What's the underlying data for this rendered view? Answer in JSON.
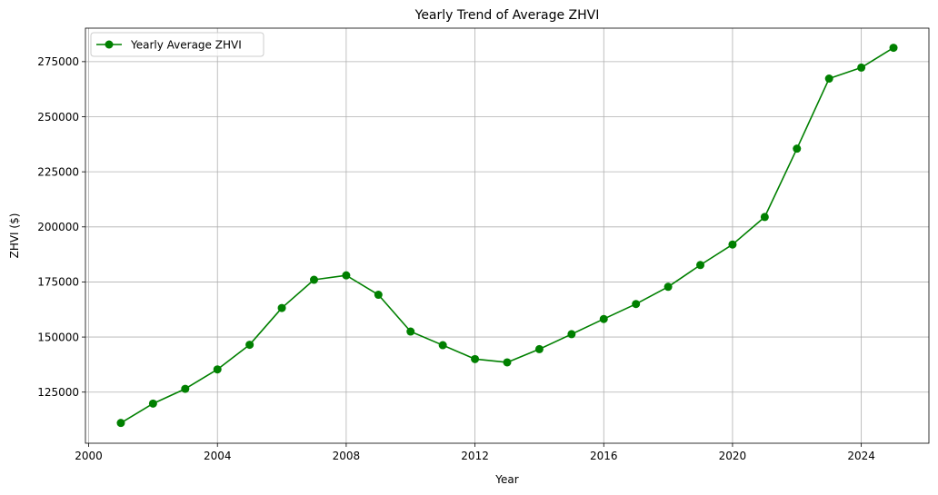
{
  "chart_data": {
    "type": "line",
    "title": "Yearly Trend of Average ZHVI",
    "xlabel": "Year",
    "ylabel": "ZHVI ($)",
    "xlim": [
      1999.9,
      2026.1
    ],
    "ylim": [
      101800,
      290200
    ],
    "xticks": [
      2000,
      2004,
      2008,
      2012,
      2016,
      2020,
      2024
    ],
    "xtick_labels": [
      "2000",
      "2004",
      "2008",
      "2012",
      "2016",
      "2020",
      "2024"
    ],
    "yticks": [
      125000,
      150000,
      175000,
      200000,
      225000,
      250000,
      275000
    ],
    "ytick_labels": [
      "125000",
      "150000",
      "175000",
      "200000",
      "225000",
      "250000",
      "275000"
    ],
    "grid": true,
    "legend_position": "top-left",
    "series": [
      {
        "name": "Yearly Average ZHVI",
        "color": "#008000",
        "marker": "circle",
        "x": [
          2001,
          2002,
          2003,
          2004,
          2005,
          2006,
          2007,
          2008,
          2009,
          2010,
          2011,
          2012,
          2013,
          2014,
          2015,
          2016,
          2017,
          2018,
          2019,
          2020,
          2021,
          2022,
          2023,
          2024,
          2025
        ],
        "y": [
          111000,
          119800,
          126500,
          135300,
          146500,
          163200,
          176000,
          178000,
          169200,
          152500,
          146300,
          140000,
          138500,
          144500,
          151300,
          158200,
          165000,
          172800,
          182700,
          192000,
          204500,
          235500,
          267300,
          272300,
          281300
        ]
      }
    ]
  }
}
